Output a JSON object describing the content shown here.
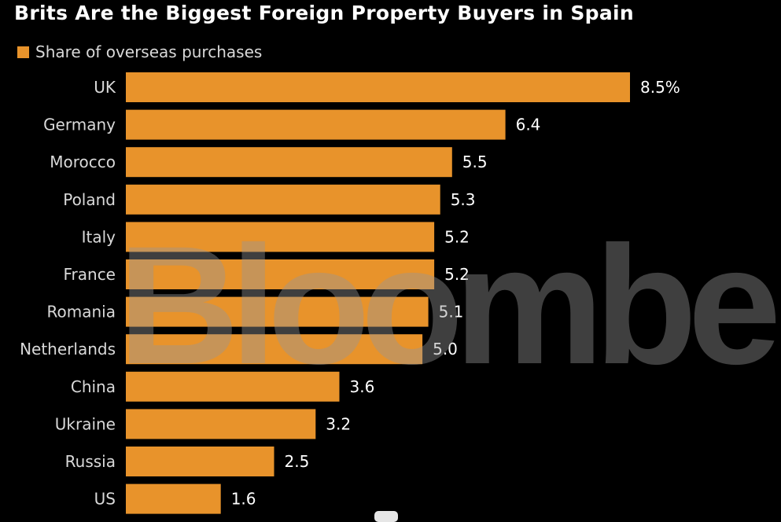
{
  "colors": {
    "background": "#000000",
    "bar": "#e8932b",
    "title": "#ffffff",
    "text": "#d9d9d9"
  },
  "watermark": "Bloomberg",
  "chart_data": {
    "type": "bar",
    "orientation": "horizontal",
    "title": "Brits Are the Biggest Foreign Property Buyers in Spain",
    "legend": [
      "Share of overseas purchases"
    ],
    "legend_position": "top-left",
    "unit": "%",
    "grid": false,
    "xlim": [
      0,
      8.5
    ],
    "categories": [
      "UK",
      "Germany",
      "Morocco",
      "Poland",
      "Italy",
      "France",
      "Romania",
      "Netherlands",
      "China",
      "Ukraine",
      "Russia",
      "US"
    ],
    "values": [
      8.5,
      6.4,
      5.5,
      5.3,
      5.2,
      5.2,
      5.1,
      5.0,
      3.6,
      3.2,
      2.5,
      1.6
    ],
    "value_labels": [
      "8.5%",
      "6.4",
      "5.5",
      "5.3",
      "5.2",
      "5.2",
      "5.1",
      "5.0",
      "3.6",
      "3.2",
      "2.5",
      "1.6"
    ]
  }
}
